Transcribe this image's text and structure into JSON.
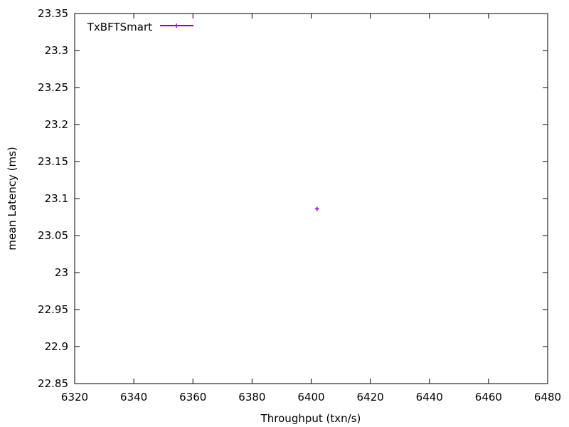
{
  "chart_data": {
    "type": "scatter",
    "xlabel": "Throughput (txn/s)",
    "ylabel": "mean Latency (ms)",
    "xlim": [
      6320,
      6480
    ],
    "ylim": [
      22.85,
      23.35
    ],
    "x_ticks": [
      "6320",
      "6340",
      "6360",
      "6380",
      "6400",
      "6420",
      "6440",
      "6460",
      "6480"
    ],
    "y_ticks": [
      "22.85",
      "22.9",
      "22.95",
      "23",
      "23.05",
      "23.1",
      "23.15",
      "23.2",
      "23.25",
      "23.3",
      "23.35"
    ],
    "grid": false,
    "legend_position": "top-left",
    "series": [
      {
        "name": "TxBFTSmart",
        "color": "#9400d3",
        "points": [
          {
            "x": 6402,
            "y": 23.086
          }
        ]
      }
    ]
  }
}
